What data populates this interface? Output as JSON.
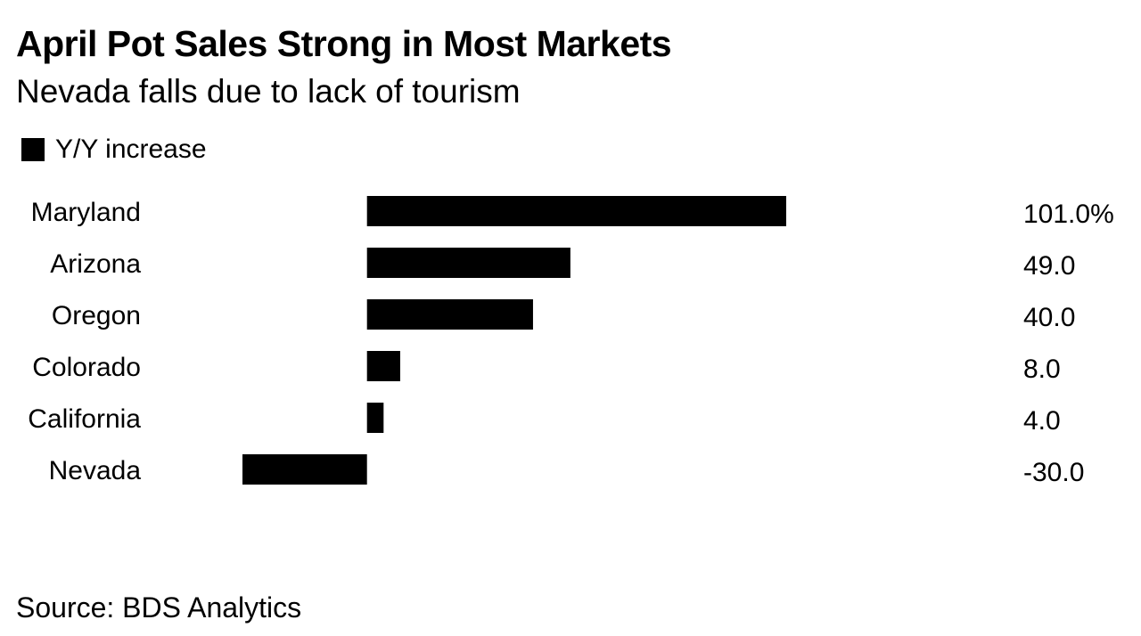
{
  "chart_data": {
    "type": "bar",
    "orientation": "horizontal",
    "title": "April Pot Sales Strong in Most Markets",
    "subtitle": "Nevada falls due to lack of tourism",
    "legend": {
      "label": "Y/Y increase",
      "placement": "top-left",
      "color": "#000000"
    },
    "categories": [
      "Maryland",
      "Arizona",
      "Oregon",
      "Colorado",
      "California",
      "Nevada"
    ],
    "values": [
      101.0,
      49.0,
      40.0,
      8.0,
      4.0,
      -30.0
    ],
    "value_labels": [
      "101.0%",
      "49.0",
      "40.0",
      "8.0",
      "4.0",
      "-30.0"
    ],
    "xlim": [
      -30,
      101
    ],
    "xlabel": "",
    "ylabel": "",
    "grid": false,
    "bar_color": "#000000",
    "source": "Source: BDS Analytics"
  }
}
